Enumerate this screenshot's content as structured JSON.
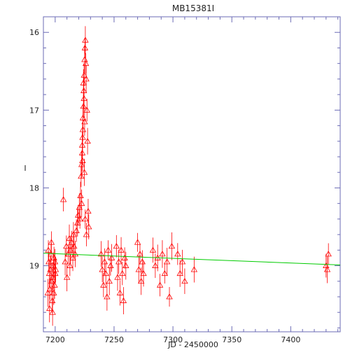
{
  "chart_data": {
    "type": "scatter",
    "title": "MB15381I",
    "xlabel": "JD - 2450000",
    "ylabel": "I",
    "xlim": [
      7190,
      7442
    ],
    "ylim": [
      19.85,
      15.8
    ],
    "y_inverted": true,
    "x_ticks": [
      7200,
      7250,
      7300,
      7350,
      7400
    ],
    "y_ticks": [
      16,
      17,
      18,
      19
    ],
    "grid": false,
    "colors": {
      "points": "#ff0000",
      "fit": "#00cc00",
      "axes": "#6b6bb5",
      "frame": "#6b6bb5"
    },
    "series": [
      {
        "marker": "triangle-open",
        "x": [
          7194.6,
          7195.0,
          7195.5,
          7196.0,
          7196.5,
          7197.0,
          7197.5,
          7198.0,
          7198.5,
          7199.0,
          7199.5,
          7200.0,
          7193.8,
          7194.2,
          7195.2,
          7196.8,
          7197.8,
          7198.8,
          7199.8,
          7200.4,
          7207.0,
          7208.5,
          7209.5,
          7210.0,
          7211.0,
          7212.0,
          7212.5,
          7213.0,
          7214.0,
          7215.0,
          7215.5,
          7216.0,
          7217.0,
          7218.0,
          7219.0,
          7219.5,
          7220.5,
          7221.0,
          7221.5,
          7222.0,
          7222.5,
          7223.0,
          7223.3,
          7223.6,
          7224.0,
          7224.3,
          7224.6,
          7225.0,
          7225.3,
          7225.6,
          7226.0,
          7226.3,
          7227.0,
          7227.5,
          7228.0,
          7228.5,
          7223.0,
          7223.5,
          7224.0,
          7224.5,
          7225.0,
          7225.5,
          7222.5,
          7223.2,
          7224.8,
          7226.5,
          7239.0,
          7240.0,
          7241.0,
          7242.0,
          7243.0,
          7244.0,
          7245.0,
          7246.0,
          7247.0,
          7248.0,
          7252.0,
          7253.0,
          7254.0,
          7255.0,
          7256.0,
          7257.0,
          7258.0,
          7259.0,
          7260.0,
          7270.0,
          7271.0,
          7272.0,
          7273.0,
          7274.0,
          7275.0,
          7283.0,
          7285.0,
          7287.0,
          7289.0,
          7291.0,
          7293.0,
          7295.0,
          7297.0,
          7299.0,
          7304.0,
          7306.0,
          7308.0,
          7310.0,
          7318.0,
          7430.0,
          7431.0,
          7432.0
        ],
        "y": [
          18.95,
          19.1,
          19.3,
          19.05,
          18.85,
          19.2,
          19.45,
          19.15,
          19.0,
          18.9,
          19.25,
          19.1,
          19.35,
          18.8,
          19.55,
          18.7,
          19.6,
          19.35,
          18.95,
          19.05,
          18.15,
          18.95,
          18.75,
          19.15,
          18.85,
          18.65,
          19.0,
          18.8,
          18.7,
          18.9,
          18.6,
          18.75,
          18.85,
          18.55,
          18.45,
          18.35,
          18.25,
          18.4,
          18.1,
          17.85,
          17.7,
          17.55,
          17.35,
          17.1,
          16.95,
          16.75,
          16.55,
          16.35,
          16.2,
          16.1,
          16.4,
          16.6,
          17.0,
          17.4,
          18.3,
          18.5,
          17.45,
          17.25,
          16.65,
          16.85,
          17.15,
          18.4,
          18.2,
          17.65,
          17.8,
          18.6,
          18.85,
          19.05,
          19.25,
          18.95,
          19.1,
          19.4,
          18.8,
          19.2,
          19.0,
          18.9,
          18.75,
          19.15,
          18.95,
          19.35,
          18.8,
          19.1,
          19.45,
          18.9,
          19.0,
          18.7,
          19.05,
          18.85,
          19.2,
          18.95,
          19.1,
          18.8,
          19.0,
          18.9,
          19.25,
          18.85,
          19.1,
          18.95,
          19.4,
          18.75,
          18.85,
          19.1,
          18.95,
          19.2,
          19.05,
          19.0,
          19.05,
          18.85
        ]
      }
    ],
    "fit_line": {
      "x": [
        7190,
        7442
      ],
      "y": [
        18.84,
        18.99
      ]
    }
  }
}
